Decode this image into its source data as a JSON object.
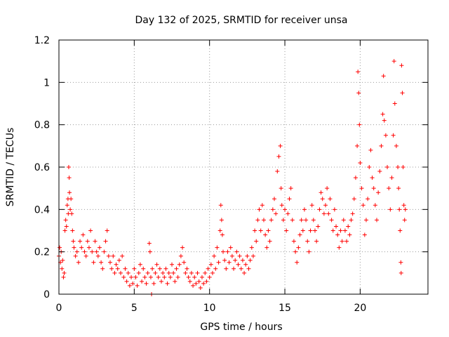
{
  "chart_data": {
    "type": "scatter",
    "title": "Day 132 of 2025, SRMTID for receiver unsa",
    "xlabel": "GPS time / hours",
    "ylabel": "SRMTID / TECUs",
    "xlim": [
      0,
      24.5
    ],
    "ylim": [
      0,
      1.2
    ],
    "xticks": [
      0,
      5,
      10,
      15,
      20
    ],
    "xtick_labels": [
      "0",
      "5",
      "10",
      "15",
      "20"
    ],
    "yticks": [
      0,
      0.2,
      0.4,
      0.6,
      0.8,
      1.0,
      1.2
    ],
    "ytick_labels": [
      "0",
      "0.2",
      "0.4",
      "0.6",
      "0.8",
      "1",
      "1.2"
    ],
    "grid": true,
    "marker": "plus",
    "color": "#ff0000",
    "series": [
      {
        "name": "SRMTID",
        "points": [
          [
            0.0,
            0.18
          ],
          [
            0.05,
            0.22
          ],
          [
            0.1,
            0.15
          ],
          [
            0.15,
            0.2
          ],
          [
            0.2,
            0.12
          ],
          [
            0.25,
            0.16
          ],
          [
            0.3,
            0.08
          ],
          [
            0.35,
            0.1
          ],
          [
            0.4,
            0.3
          ],
          [
            0.45,
            0.35
          ],
          [
            0.5,
            0.32
          ],
          [
            0.55,
            0.42
          ],
          [
            0.6,
            0.45
          ],
          [
            0.62,
            0.38
          ],
          [
            0.65,
            0.6
          ],
          [
            0.68,
            0.55
          ],
          [
            0.7,
            0.48
          ],
          [
            0.75,
            0.4
          ],
          [
            0.8,
            0.45
          ],
          [
            0.85,
            0.38
          ],
          [
            0.9,
            0.3
          ],
          [
            0.95,
            0.25
          ],
          [
            1.0,
            0.22
          ],
          [
            1.1,
            0.18
          ],
          [
            1.2,
            0.2
          ],
          [
            1.3,
            0.15
          ],
          [
            1.4,
            0.25
          ],
          [
            1.5,
            0.22
          ],
          [
            1.6,
            0.28
          ],
          [
            1.7,
            0.2
          ],
          [
            1.8,
            0.18
          ],
          [
            1.9,
            0.25
          ],
          [
            2.0,
            0.22
          ],
          [
            2.1,
            0.3
          ],
          [
            2.2,
            0.2
          ],
          [
            2.3,
            0.15
          ],
          [
            2.4,
            0.25
          ],
          [
            2.5,
            0.2
          ],
          [
            2.6,
            0.18
          ],
          [
            2.7,
            0.22
          ],
          [
            2.8,
            0.15
          ],
          [
            2.9,
            0.12
          ],
          [
            3.0,
            0.2
          ],
          [
            3.1,
            0.25
          ],
          [
            3.2,
            0.3
          ],
          [
            3.3,
            0.18
          ],
          [
            3.4,
            0.15
          ],
          [
            3.5,
            0.12
          ],
          [
            3.6,
            0.18
          ],
          [
            3.7,
            0.1
          ],
          [
            3.8,
            0.14
          ],
          [
            3.9,
            0.12
          ],
          [
            4.0,
            0.16
          ],
          [
            4.1,
            0.1
          ],
          [
            4.2,
            0.18
          ],
          [
            4.3,
            0.08
          ],
          [
            4.4,
            0.12
          ],
          [
            4.5,
            0.06
          ],
          [
            4.6,
            0.1
          ],
          [
            4.7,
            0.04
          ],
          [
            4.8,
            0.08
          ],
          [
            4.9,
            0.05
          ],
          [
            5.0,
            0.12
          ],
          [
            5.1,
            0.08
          ],
          [
            5.2,
            0.04
          ],
          [
            5.3,
            0.1
          ],
          [
            5.4,
            0.14
          ],
          [
            5.5,
            0.06
          ],
          [
            5.6,
            0.12
          ],
          [
            5.7,
            0.08
          ],
          [
            5.8,
            0.05
          ],
          [
            5.9,
            0.1
          ],
          [
            6.0,
            0.24
          ],
          [
            6.05,
            0.2
          ],
          [
            6.1,
            0.08
          ],
          [
            6.15,
            0.0
          ],
          [
            6.2,
            0.12
          ],
          [
            6.3,
            0.05
          ],
          [
            6.4,
            0.1
          ],
          [
            6.5,
            0.14
          ],
          [
            6.6,
            0.08
          ],
          [
            6.7,
            0.12
          ],
          [
            6.8,
            0.06
          ],
          [
            6.9,
            0.1
          ],
          [
            7.0,
            0.08
          ],
          [
            7.1,
            0.12
          ],
          [
            7.2,
            0.05
          ],
          [
            7.3,
            0.1
          ],
          [
            7.4,
            0.08
          ],
          [
            7.5,
            0.14
          ],
          [
            7.6,
            0.1
          ],
          [
            7.7,
            0.06
          ],
          [
            7.8,
            0.12
          ],
          [
            7.9,
            0.08
          ],
          [
            8.0,
            0.14
          ],
          [
            8.1,
            0.18
          ],
          [
            8.2,
            0.22
          ],
          [
            8.3,
            0.15
          ],
          [
            8.4,
            0.1
          ],
          [
            8.5,
            0.12
          ],
          [
            8.6,
            0.08
          ],
          [
            8.7,
            0.06
          ],
          [
            8.8,
            0.1
          ],
          [
            8.9,
            0.04
          ],
          [
            9.0,
            0.08
          ],
          [
            9.1,
            0.05
          ],
          [
            9.2,
            0.1
          ],
          [
            9.3,
            0.06
          ],
          [
            9.4,
            0.03
          ],
          [
            9.5,
            0.08
          ],
          [
            9.6,
            0.05
          ],
          [
            9.7,
            0.1
          ],
          [
            9.8,
            0.06
          ],
          [
            9.9,
            0.12
          ],
          [
            10.0,
            0.08
          ],
          [
            10.1,
            0.14
          ],
          [
            10.2,
            0.1
          ],
          [
            10.3,
            0.18
          ],
          [
            10.4,
            0.12
          ],
          [
            10.5,
            0.22
          ],
          [
            10.6,
            0.15
          ],
          [
            10.7,
            0.3
          ],
          [
            10.75,
            0.42
          ],
          [
            10.8,
            0.35
          ],
          [
            10.85,
            0.28
          ],
          [
            10.9,
            0.2
          ],
          [
            11.0,
            0.16
          ],
          [
            11.1,
            0.12
          ],
          [
            11.2,
            0.2
          ],
          [
            11.3,
            0.15
          ],
          [
            11.4,
            0.22
          ],
          [
            11.5,
            0.18
          ],
          [
            11.6,
            0.12
          ],
          [
            11.7,
            0.16
          ],
          [
            11.8,
            0.2
          ],
          [
            11.9,
            0.14
          ],
          [
            12.0,
            0.18
          ],
          [
            12.1,
            0.12
          ],
          [
            12.2,
            0.16
          ],
          [
            12.3,
            0.1
          ],
          [
            12.4,
            0.14
          ],
          [
            12.5,
            0.18
          ],
          [
            12.6,
            0.12
          ],
          [
            12.7,
            0.16
          ],
          [
            12.8,
            0.22
          ],
          [
            12.9,
            0.18
          ],
          [
            13.0,
            0.3
          ],
          [
            13.1,
            0.25
          ],
          [
            13.2,
            0.35
          ],
          [
            13.3,
            0.4
          ],
          [
            13.4,
            0.3
          ],
          [
            13.5,
            0.42
          ],
          [
            13.6,
            0.35
          ],
          [
            13.7,
            0.28
          ],
          [
            13.8,
            0.22
          ],
          [
            13.9,
            0.3
          ],
          [
            14.0,
            0.25
          ],
          [
            14.1,
            0.35
          ],
          [
            14.2,
            0.4
          ],
          [
            14.3,
            0.45
          ],
          [
            14.4,
            0.38
          ],
          [
            14.5,
            0.58
          ],
          [
            14.6,
            0.65
          ],
          [
            14.7,
            0.7
          ],
          [
            14.75,
            0.5
          ],
          [
            14.8,
            0.42
          ],
          [
            14.9,
            0.35
          ],
          [
            15.0,
            0.4
          ],
          [
            15.1,
            0.3
          ],
          [
            15.2,
            0.38
          ],
          [
            15.3,
            0.45
          ],
          [
            15.4,
            0.5
          ],
          [
            15.5,
            0.35
          ],
          [
            15.6,
            0.25
          ],
          [
            15.7,
            0.2
          ],
          [
            15.8,
            0.15
          ],
          [
            15.9,
            0.22
          ],
          [
            16.0,
            0.28
          ],
          [
            16.1,
            0.35
          ],
          [
            16.2,
            0.3
          ],
          [
            16.3,
            0.4
          ],
          [
            16.4,
            0.35
          ],
          [
            16.5,
            0.25
          ],
          [
            16.6,
            0.2
          ],
          [
            16.7,
            0.3
          ],
          [
            16.8,
            0.42
          ],
          [
            16.9,
            0.35
          ],
          [
            17.0,
            0.3
          ],
          [
            17.1,
            0.25
          ],
          [
            17.2,
            0.32
          ],
          [
            17.3,
            0.4
          ],
          [
            17.4,
            0.48
          ],
          [
            17.5,
            0.45
          ],
          [
            17.6,
            0.38
          ],
          [
            17.7,
            0.42
          ],
          [
            17.8,
            0.5
          ],
          [
            17.9,
            0.38
          ],
          [
            18.0,
            0.45
          ],
          [
            18.1,
            0.35
          ],
          [
            18.2,
            0.3
          ],
          [
            18.3,
            0.4
          ],
          [
            18.4,
            0.32
          ],
          [
            18.5,
            0.28
          ],
          [
            18.6,
            0.22
          ],
          [
            18.7,
            0.3
          ],
          [
            18.8,
            0.25
          ],
          [
            18.9,
            0.35
          ],
          [
            19.0,
            0.3
          ],
          [
            19.1,
            0.25
          ],
          [
            19.2,
            0.32
          ],
          [
            19.3,
            0.28
          ],
          [
            19.4,
            0.35
          ],
          [
            19.5,
            0.38
          ],
          [
            19.6,
            0.45
          ],
          [
            19.7,
            0.55
          ],
          [
            19.8,
            0.7
          ],
          [
            19.85,
            1.05
          ],
          [
            19.9,
            0.95
          ],
          [
            19.95,
            0.8
          ],
          [
            20.0,
            0.62
          ],
          [
            20.1,
            0.5
          ],
          [
            20.2,
            0.42
          ],
          [
            20.3,
            0.28
          ],
          [
            20.4,
            0.35
          ],
          [
            20.5,
            0.45
          ],
          [
            20.6,
            0.6
          ],
          [
            20.7,
            0.68
          ],
          [
            20.8,
            0.55
          ],
          [
            20.9,
            0.5
          ],
          [
            21.0,
            0.42
          ],
          [
            21.1,
            0.35
          ],
          [
            21.2,
            0.48
          ],
          [
            21.3,
            0.58
          ],
          [
            21.4,
            0.7
          ],
          [
            21.5,
            0.85
          ],
          [
            21.55,
            1.03
          ],
          [
            21.6,
            0.82
          ],
          [
            21.7,
            0.75
          ],
          [
            21.8,
            0.6
          ],
          [
            21.9,
            0.5
          ],
          [
            22.0,
            0.4
          ],
          [
            22.1,
            0.55
          ],
          [
            22.2,
            0.75
          ],
          [
            22.25,
            1.1
          ],
          [
            22.3,
            0.9
          ],
          [
            22.4,
            0.7
          ],
          [
            22.5,
            0.6
          ],
          [
            22.55,
            0.5
          ],
          [
            22.6,
            0.4
          ],
          [
            22.65,
            0.3
          ],
          [
            22.7,
            0.15
          ],
          [
            22.72,
            0.1
          ],
          [
            22.75,
            1.08
          ],
          [
            22.8,
            0.95
          ],
          [
            22.85,
            0.6
          ],
          [
            22.9,
            0.42
          ],
          [
            22.95,
            0.35
          ],
          [
            23.0,
            0.4
          ]
        ]
      }
    ]
  }
}
